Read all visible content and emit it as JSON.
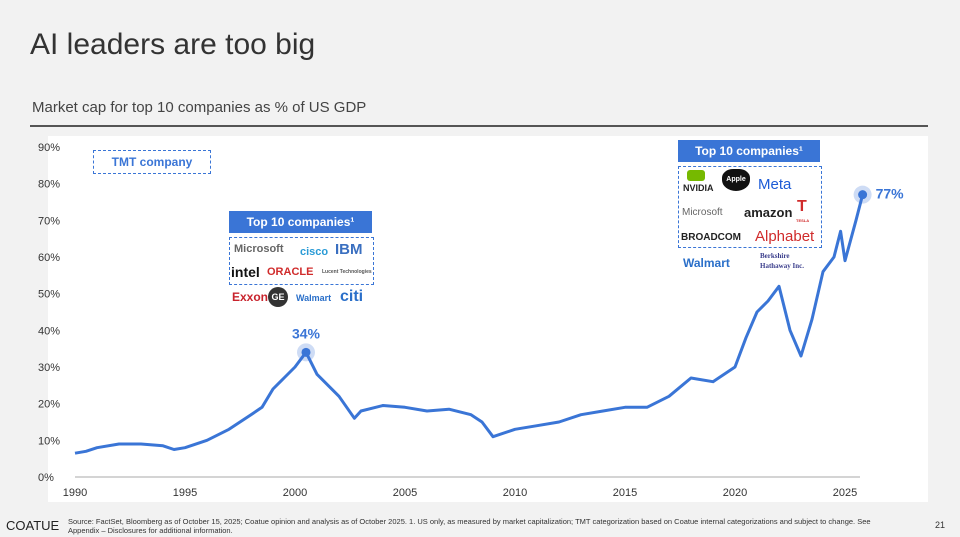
{
  "title": "AI leaders are too big",
  "subtitle": "Market cap for top 10 companies as % of US GDP",
  "tmt_label": "TMT company",
  "annotations": {
    "peak_2000": "34%",
    "peak_2025": "77%"
  },
  "box_2000": {
    "label": "Top 10 companies¹",
    "companies": [
      "Microsoft",
      "cisco",
      "IBM",
      "intel",
      "ORACLE",
      "Lucent Technologies",
      "Exxon",
      "GE",
      "Walmart",
      "citi"
    ]
  },
  "box_2025": {
    "label": "Top 10 companies¹",
    "companies": [
      "NVIDIA",
      "Apple",
      "Meta",
      "Microsoft",
      "amazon",
      "TESLA",
      "BROADCOM",
      "Alphabet",
      "Walmart",
      "Berkshire Hathaway Inc."
    ]
  },
  "footer": {
    "brand": "COATUE",
    "source": "Source: FactSet, Bloomberg as of October 15, 2025; Coatue opinion and analysis as of October 2025. 1. US only, as measured by market capitalization; TMT categorization based on Coatue internal categorizations and subject to change. See Appendix – Disclosures for additional information.",
    "page": "21"
  },
  "colors": {
    "line": "#3a75d6",
    "tmt": "#3a75d6"
  },
  "chart_data": {
    "type": "line",
    "title": "",
    "xlabel": "",
    "ylabel": "",
    "xlim": [
      1990,
      2026
    ],
    "ylim": [
      0,
      90
    ],
    "grid": false,
    "x_ticks": [
      "1990",
      "1995",
      "2000",
      "2005",
      "2010",
      "2015",
      "2020",
      "2025"
    ],
    "y_ticks": [
      "0%",
      "10%",
      "20%",
      "30%",
      "40%",
      "50%",
      "60%",
      "70%",
      "80%",
      "90%"
    ],
    "series": [
      {
        "x": [
          1990,
          1990.5,
          1991,
          1992,
          1993,
          1994,
          1994.5,
          1995,
          1996,
          1997,
          1998,
          1998.5,
          1999,
          1999.5,
          2000,
          2000.5,
          2001,
          2001.5,
          2002,
          2002.7,
          2003,
          2004,
          2005,
          2006,
          2007,
          2008,
          2008.5,
          2009,
          2010,
          2011,
          2012,
          2013,
          2014,
          2015,
          2016,
          2017,
          2018,
          2019,
          2020,
          2020.5,
          2021,
          2021.5,
          2022,
          2022.5,
          2023,
          2023.5,
          2024,
          2024.5,
          2024.8,
          2025,
          2025.5,
          2025.8
        ],
        "values": [
          6.5,
          7,
          8,
          9,
          9,
          8.5,
          7.5,
          8,
          10,
          13,
          17,
          19,
          24,
          27,
          30,
          34,
          28,
          25,
          22,
          16,
          18,
          19.5,
          19,
          18,
          18.5,
          17,
          15,
          11,
          13,
          14,
          15,
          17,
          18,
          19,
          19,
          22,
          27,
          26,
          30,
          38,
          45,
          48,
          52,
          40,
          33,
          43,
          56,
          60,
          67,
          59,
          70,
          77
        ]
      }
    ]
  }
}
